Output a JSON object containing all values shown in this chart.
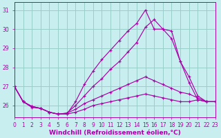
{
  "xlabel": "Windchill (Refroidissement éolien,°C)",
  "xlim": [
    0,
    23
  ],
  "ylim": [
    25.4,
    31.4
  ],
  "yticks": [
    26,
    27,
    28,
    29,
    30,
    31
  ],
  "xticks": [
    0,
    1,
    2,
    3,
    4,
    5,
    6,
    7,
    8,
    9,
    10,
    11,
    12,
    13,
    14,
    15,
    16,
    17,
    18,
    19,
    20,
    21,
    22,
    23
  ],
  "background_color": "#c8eef0",
  "grid_color": "#98cec8",
  "line_color": "#aa00aa",
  "lines": [
    {
      "x": [
        0,
        1,
        2,
        3,
        4,
        5,
        6,
        7,
        8,
        9,
        10,
        11,
        12,
        13,
        14,
        15,
        16,
        17,
        18,
        19,
        20,
        21,
        22,
        23
      ],
      "y": [
        27.0,
        26.2,
        25.9,
        25.85,
        25.65,
        25.55,
        25.55,
        25.65,
        25.8,
        26.0,
        26.1,
        26.2,
        26.3,
        26.4,
        26.5,
        26.6,
        26.5,
        26.4,
        26.3,
        26.2,
        26.2,
        26.3,
        26.2,
        26.2
      ]
    },
    {
      "x": [
        0,
        1,
        2,
        3,
        4,
        5,
        6,
        7,
        8,
        9,
        10,
        11,
        12,
        13,
        14,
        15,
        16,
        17,
        18,
        19,
        20,
        21,
        22,
        23
      ],
      "y": [
        27.0,
        26.2,
        25.95,
        25.85,
        25.65,
        25.55,
        25.6,
        25.8,
        26.1,
        26.3,
        26.5,
        26.7,
        26.9,
        27.1,
        27.3,
        27.5,
        27.3,
        27.1,
        26.9,
        26.7,
        26.6,
        26.4,
        26.2,
        26.2
      ]
    },
    {
      "x": [
        0,
        1,
        2,
        3,
        4,
        5,
        6,
        7,
        8,
        9,
        10,
        11,
        12,
        13,
        14,
        15,
        16,
        17,
        18,
        19,
        20,
        21,
        22,
        23
      ],
      "y": [
        27.0,
        26.2,
        25.95,
        25.85,
        25.65,
        25.55,
        25.6,
        26.0,
        26.5,
        27.0,
        27.4,
        27.9,
        28.3,
        28.8,
        29.3,
        30.1,
        30.5,
        30.0,
        29.5,
        28.3,
        27.5,
        26.5,
        26.2,
        26.2
      ]
    },
    {
      "x": [
        0,
        1,
        2,
        3,
        4,
        5,
        6,
        7,
        8,
        9,
        10,
        11,
        12,
        13,
        14,
        15,
        16,
        17,
        18,
        19,
        20,
        21,
        22,
        23
      ],
      "y": [
        27.0,
        26.2,
        25.95,
        25.85,
        25.65,
        25.55,
        25.55,
        26.2,
        27.1,
        27.8,
        28.4,
        28.9,
        29.4,
        29.9,
        30.3,
        31.0,
        30.0,
        30.0,
        29.9,
        28.3,
        27.2,
        26.3,
        26.2,
        26.2
      ]
    }
  ],
  "font_color": "#aa00aa",
  "tick_fontsize": 5.5,
  "label_fontsize": 6.5
}
